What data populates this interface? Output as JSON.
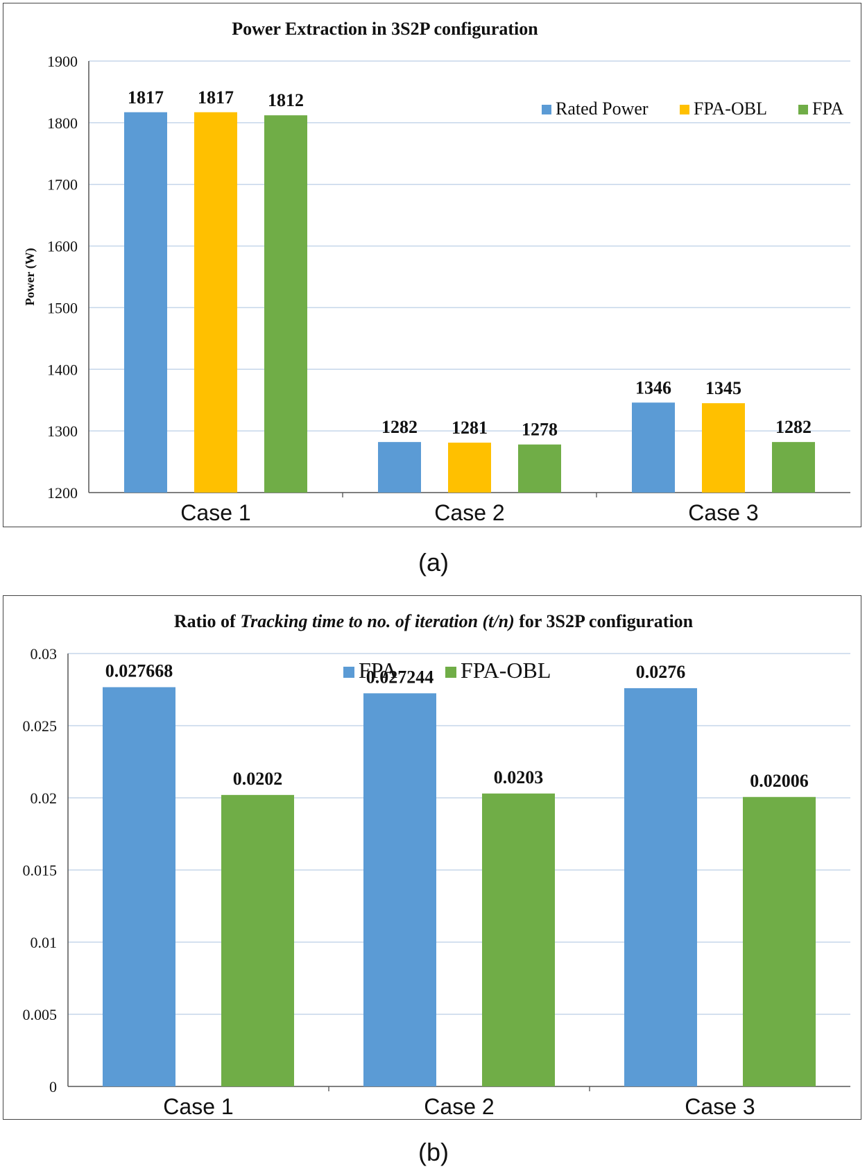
{
  "chart_data": [
    {
      "type": "bar",
      "title": "Power Extraction in 3S2P configuration",
      "ylabel": "Power (W)",
      "xlabel": "",
      "categories": [
        "Case 1",
        "Case 2",
        "Case 3"
      ],
      "ylim": [
        1200,
        1900
      ],
      "yticks": [
        "1200",
        "1300",
        "1400",
        "1500",
        "1600",
        "1700",
        "1800",
        "1900"
      ],
      "legend_position": "top-right",
      "grid": true,
      "series": [
        {
          "name": "Rated Power",
          "color": "#5b9bd5",
          "values": [
            1817,
            1282,
            1346
          ],
          "labels": [
            "1817",
            "1282",
            "1346"
          ]
        },
        {
          "name": "FPA-OBL",
          "color": "#ffc000",
          "values": [
            1817,
            1281,
            1345
          ],
          "labels": [
            "1817",
            "1281",
            "1345"
          ]
        },
        {
          "name": "FPA",
          "color": "#70ad47",
          "values": [
            1812,
            1278,
            1282
          ],
          "labels": [
            "1812",
            "1278",
            "1282"
          ]
        }
      ]
    },
    {
      "type": "bar",
      "title_parts": [
        "Ratio of ",
        "Tracking time to no. of iteration (t/n)",
        " for 3S2P configuration"
      ],
      "xlabel": "",
      "ylabel": "",
      "categories": [
        "Case 1",
        "Case 2",
        "Case 3"
      ],
      "ylim": [
        0,
        0.03
      ],
      "yticks": [
        "0",
        "0.005",
        "0.01",
        "0.015",
        "0.02",
        "0.025",
        "0.03"
      ],
      "legend_position": "top-center",
      "grid": true,
      "series": [
        {
          "name": "FPA",
          "color": "#5b9bd5",
          "values": [
            0.027668,
            0.027244,
            0.0276
          ],
          "labels": [
            "0.027668",
            "0.027244",
            "0.0276"
          ]
        },
        {
          "name": "FPA-OBL",
          "color": "#70ad47",
          "values": [
            0.0202,
            0.0203,
            0.02006
          ],
          "labels": [
            "0.0202",
            "0.0203",
            "0.02006"
          ]
        }
      ]
    }
  ],
  "captions": {
    "a": "(a)",
    "b": "(b)"
  }
}
